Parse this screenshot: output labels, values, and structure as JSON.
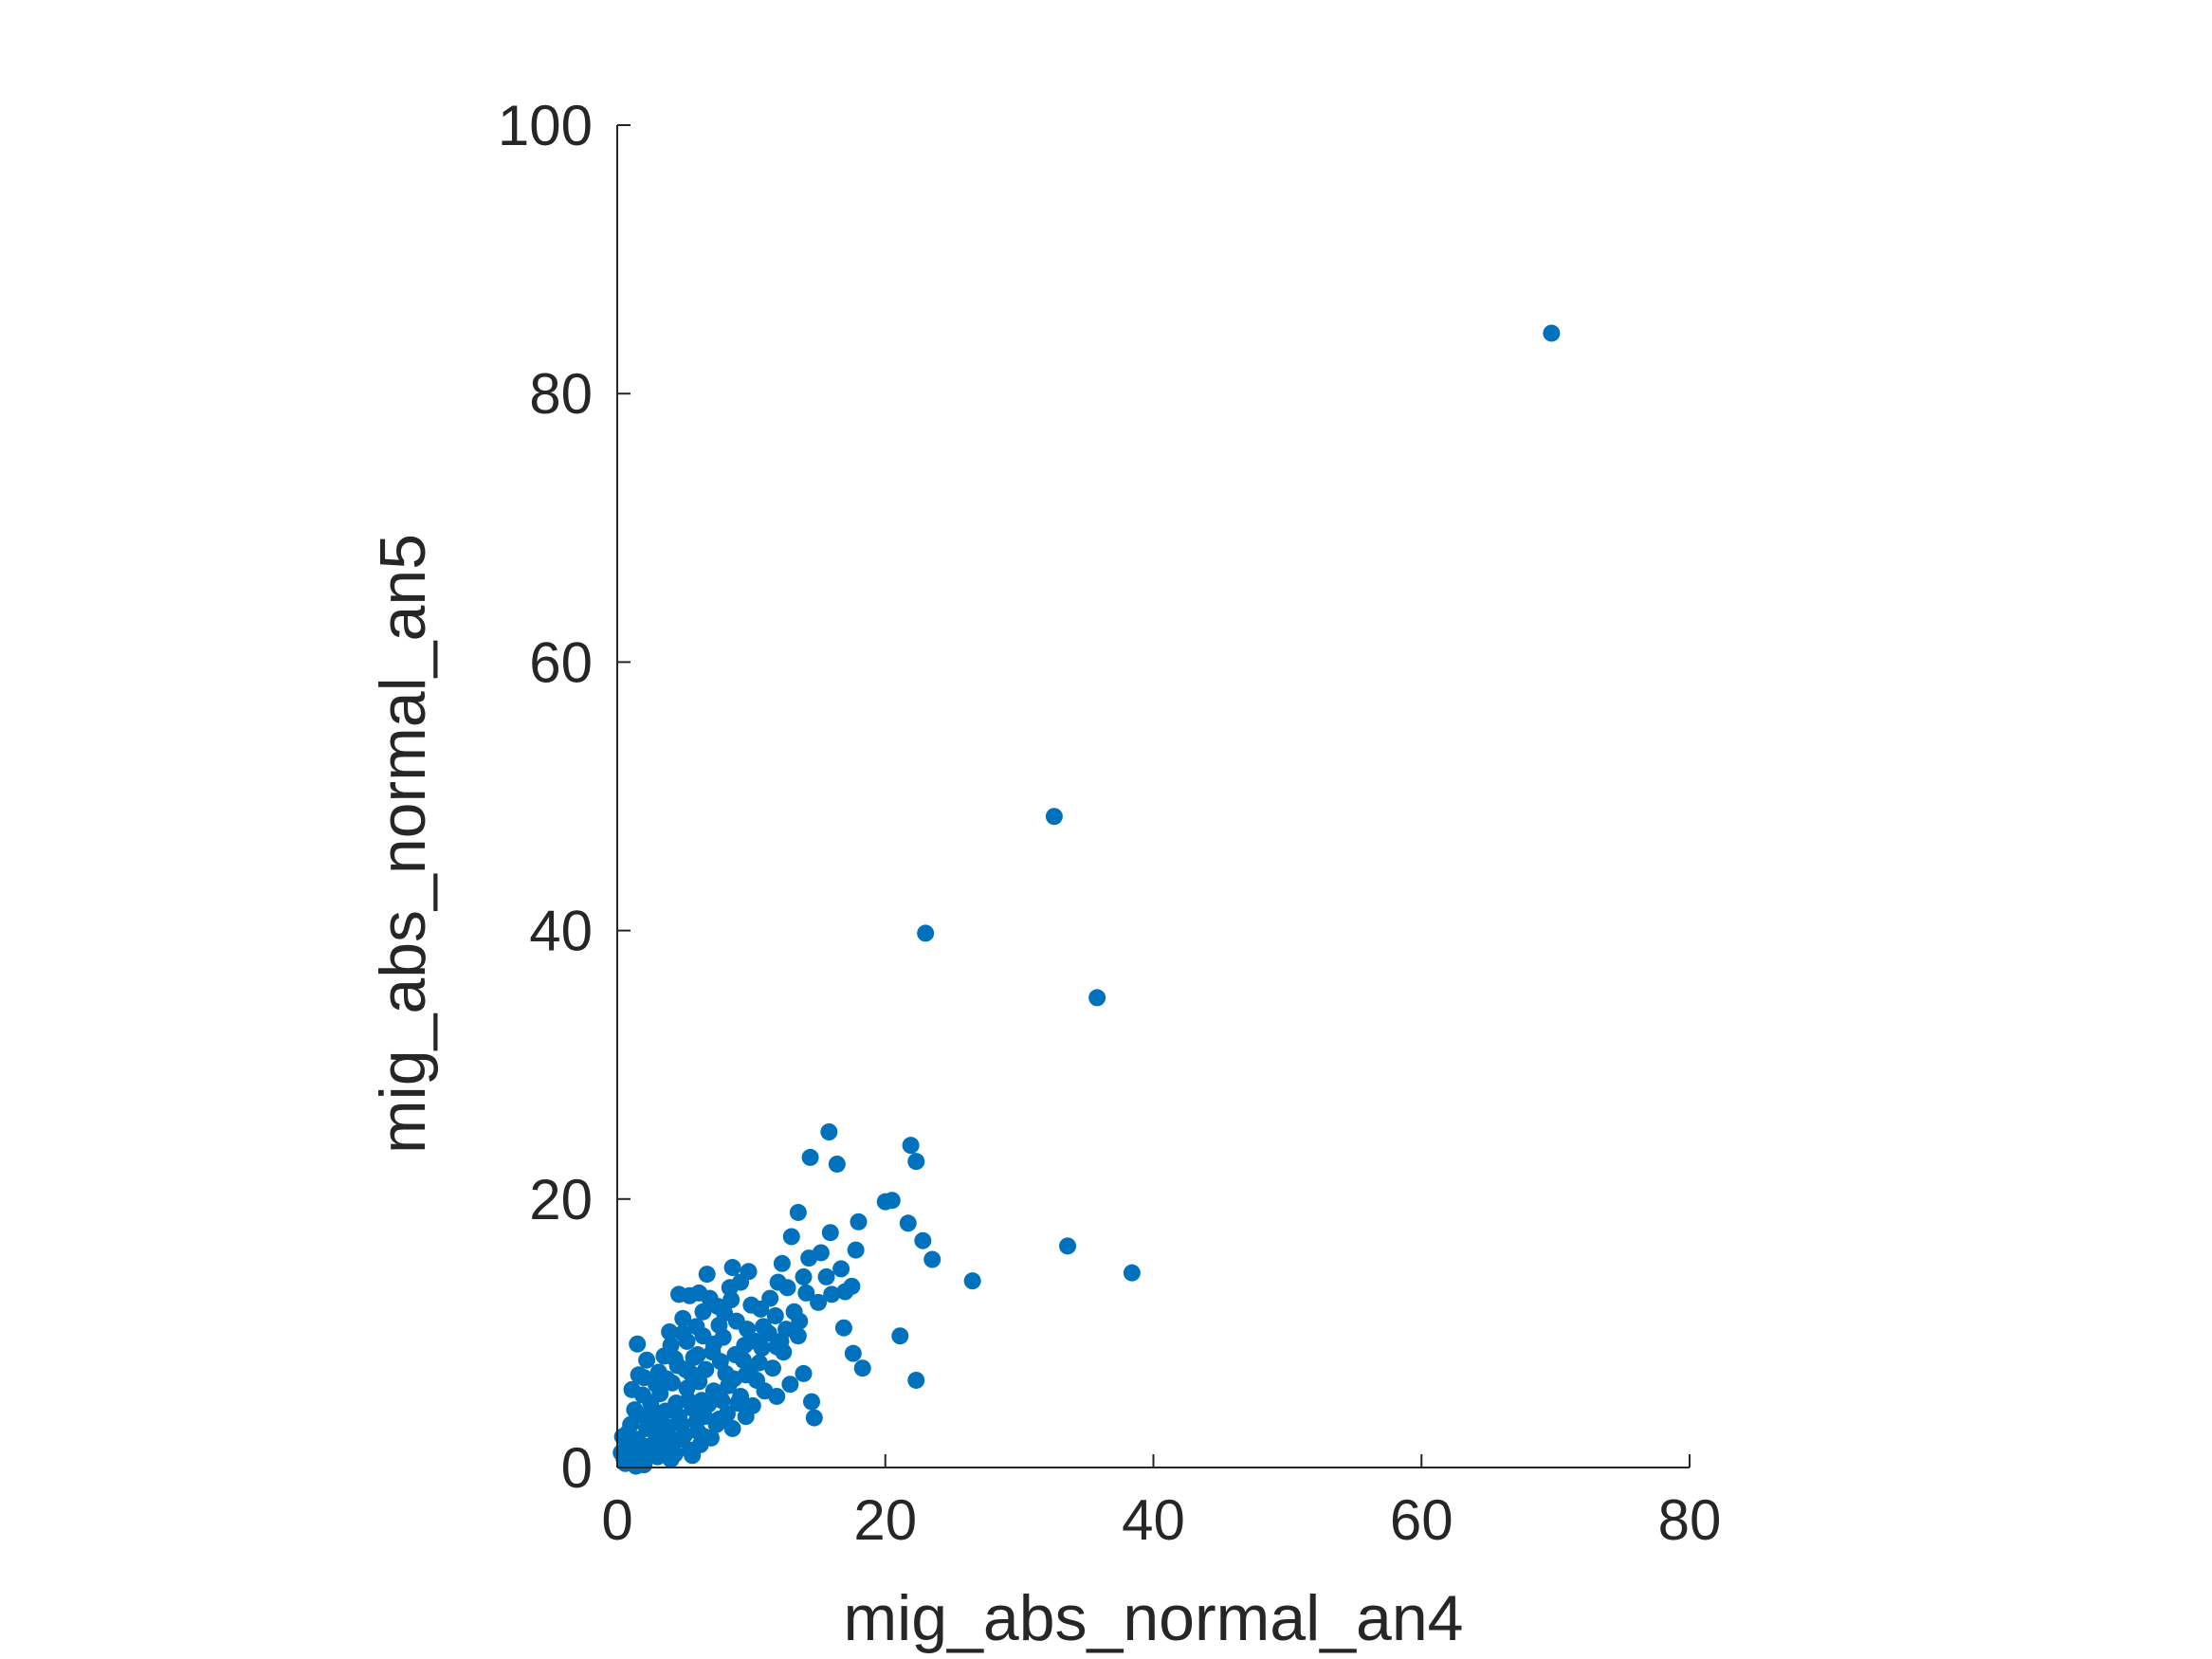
{
  "chart_data": {
    "type": "scatter",
    "title": "",
    "xlabel": "mig_abs_normal_an4",
    "ylabel": "mig_abs_normal_an5",
    "xlim": [
      0,
      80
    ],
    "ylim": [
      0,
      100
    ],
    "xticks": [
      "0",
      "20",
      "40",
      "60",
      "80"
    ],
    "yticks": [
      "0",
      "20",
      "40",
      "60",
      "80",
      "100"
    ],
    "grid": false,
    "box": "off",
    "marker_color": "#0072BD",
    "series": [
      {
        "points": [
          [
            69.7,
            84.5
          ],
          [
            32.6,
            48.5
          ],
          [
            23.0,
            39.8
          ],
          [
            35.8,
            35.0
          ],
          [
            38.4,
            14.5
          ],
          [
            33.6,
            16.5
          ],
          [
            26.5,
            13.9
          ],
          [
            15.8,
            25.0
          ],
          [
            14.4,
            23.1
          ],
          [
            16.4,
            22.6
          ],
          [
            21.9,
            24.0
          ],
          [
            22.3,
            22.8
          ],
          [
            20.5,
            19.9
          ],
          [
            20.0,
            19.8
          ],
          [
            21.7,
            18.2
          ],
          [
            22.8,
            16.9
          ],
          [
            23.5,
            15.5
          ],
          [
            18.0,
            18.3
          ],
          [
            17.8,
            16.2
          ],
          [
            16.7,
            14.8
          ],
          [
            17.5,
            13.5
          ],
          [
            15.9,
            17.5
          ],
          [
            15.2,
            16.0
          ],
          [
            13.5,
            19.0
          ],
          [
            13.0,
            17.2
          ],
          [
            12.3,
            15.2
          ],
          [
            14.3,
            15.6
          ],
          [
            13.9,
            14.2
          ],
          [
            12.7,
            13.4
          ],
          [
            15.0,
            12.3
          ],
          [
            16.0,
            12.9
          ],
          [
            17.0,
            13.1
          ],
          [
            16.9,
            10.4
          ],
          [
            17.6,
            8.5
          ],
          [
            21.1,
            9.8
          ],
          [
            22.3,
            6.5
          ],
          [
            18.3,
            7.4
          ],
          [
            13.9,
            7.0
          ],
          [
            14.5,
            4.9
          ],
          [
            14.7,
            3.7
          ],
          [
            13.5,
            9.8
          ],
          [
            11.8,
            11.3
          ],
          [
            12.2,
            9.4
          ],
          [
            11.3,
            10.0
          ],
          [
            10.8,
            8.9
          ],
          [
            10.0,
            12.1
          ],
          [
            9.8,
            14.6
          ],
          [
            9.2,
            13.8
          ],
          [
            8.5,
            12.5
          ],
          [
            8.6,
            14.9
          ],
          [
            8.0,
            11.5
          ],
          [
            6.7,
            14.4
          ],
          [
            6.1,
            13.0
          ],
          [
            6.9,
            12.6
          ],
          [
            5.4,
            12.8
          ],
          [
            4.6,
            12.9
          ],
          [
            4.9,
            11.1
          ],
          [
            5.9,
            10.5
          ],
          [
            7.6,
            10.6
          ],
          [
            7.2,
            9.2
          ],
          [
            6.4,
            9.8
          ],
          [
            6.0,
            8.4
          ],
          [
            5.2,
            9.4
          ],
          [
            4.0,
            9.1
          ],
          [
            3.5,
            8.3
          ],
          [
            1.5,
            9.2
          ],
          [
            2.2,
            8.0
          ],
          [
            3.1,
            7.1
          ],
          [
            4.5,
            7.6
          ],
          [
            5.5,
            7.0
          ],
          [
            6.6,
            7.3
          ],
          [
            7.7,
            7.9
          ],
          [
            8.8,
            8.4
          ],
          [
            9.5,
            9.1
          ],
          [
            9.9,
            7.3
          ],
          [
            10.4,
            6.5
          ],
          [
            11.0,
            5.7
          ],
          [
            10.1,
            4.6
          ],
          [
            9.2,
            5.3
          ],
          [
            8.3,
            6.1
          ],
          [
            7.2,
            5.7
          ],
          [
            6.3,
            5.0
          ],
          [
            5.2,
            5.9
          ],
          [
            4.1,
            6.3
          ],
          [
            3.2,
            5.5
          ],
          [
            2.5,
            4.8
          ],
          [
            1.9,
            5.4
          ],
          [
            1.3,
            4.3
          ],
          [
            2.7,
            3.6
          ],
          [
            3.6,
            4.2
          ],
          [
            4.6,
            3.8
          ],
          [
            5.6,
            4.4
          ],
          [
            6.5,
            3.8
          ],
          [
            7.4,
            3.2
          ],
          [
            8.2,
            4.0
          ],
          [
            9.0,
            4.8
          ],
          [
            7.0,
            2.2
          ],
          [
            6.0,
            2.7
          ],
          [
            5.0,
            2.4
          ],
          [
            4.1,
            1.9
          ],
          [
            3.2,
            2.6
          ],
          [
            2.2,
            2.9
          ],
          [
            1.5,
            2.1
          ],
          [
            1.0,
            3.2
          ],
          [
            0.7,
            1.5
          ],
          [
            0.5,
            0.7
          ],
          [
            1.1,
            0.6
          ],
          [
            1.8,
            1.2
          ],
          [
            2.5,
            0.9
          ],
          [
            3.4,
            1.4
          ],
          [
            4.3,
            1.0
          ],
          [
            5.4,
            1.3
          ],
          [
            6.2,
            1.7
          ],
          [
            2.0,
            0.2
          ],
          [
            1.4,
            0.1
          ],
          [
            0.4,
            2.3
          ],
          [
            0.8,
            2.6
          ],
          [
            2.9,
            2.0
          ],
          [
            3.8,
            3.0
          ],
          [
            4.8,
            3.2
          ],
          [
            5.9,
            3.4
          ],
          [
            6.8,
            4.7
          ],
          [
            7.8,
            5.0
          ],
          [
            8.7,
            6.6
          ],
          [
            9.6,
            6.9
          ],
          [
            10.6,
            7.8
          ],
          [
            11.6,
            7.4
          ],
          [
            12.4,
            8.6
          ],
          [
            12.9,
            6.2
          ],
          [
            11.9,
            5.3
          ],
          [
            10.7,
            11.8
          ],
          [
            11.4,
            12.6
          ],
          [
            12.0,
            13.8
          ],
          [
            13.2,
            11.6
          ],
          [
            14.1,
            13.0
          ],
          [
            15.6,
            14.2
          ],
          [
            9.7,
            10.3
          ],
          [
            8.9,
            10.9
          ],
          [
            7.9,
            9.7
          ],
          [
            7.1,
            8.6
          ],
          [
            6.1,
            6.4
          ],
          [
            5.1,
            7.3
          ],
          [
            4.3,
            8.1
          ],
          [
            3.7,
            6.6
          ],
          [
            2.9,
            6.2
          ],
          [
            2.0,
            6.7
          ],
          [
            1.6,
            6.9
          ],
          [
            1.1,
            5.8
          ],
          [
            3.9,
            10.1
          ],
          [
            4.9,
            10.0
          ],
          [
            6.4,
            11.6
          ],
          [
            5.7,
            8.2
          ],
          [
            8.1,
            7.0
          ],
          [
            9.4,
            8.0
          ],
          [
            10.3,
            9.4
          ],
          [
            10.9,
            10.5
          ],
          [
            11.9,
            9.0
          ],
          [
            12.6,
            10.3
          ],
          [
            13.6,
            10.9
          ],
          [
            7.5,
            12.0
          ],
          [
            8.4,
            13.4
          ],
          [
            2.4,
            1.6
          ],
          [
            3.0,
            0.8
          ],
          [
            4.0,
            0.6
          ],
          [
            4.6,
            2.1
          ],
          [
            5.6,
            0.9
          ],
          [
            6.5,
            2.3
          ],
          [
            7.6,
            3.6
          ],
          [
            8.6,
            2.9
          ],
          [
            9.6,
            3.8
          ],
          [
            1.7,
            3.9
          ],
          [
            2.7,
            4.2
          ],
          [
            3.3,
            3.3
          ],
          [
            4.4,
            4.8
          ],
          [
            5.3,
            5.0
          ],
          [
            0.3,
            1.1
          ],
          [
            0.9,
            1.9
          ],
          [
            1.2,
            1.3
          ],
          [
            0.6,
            0.3
          ],
          [
            2.3,
            3.4
          ]
        ]
      }
    ]
  }
}
